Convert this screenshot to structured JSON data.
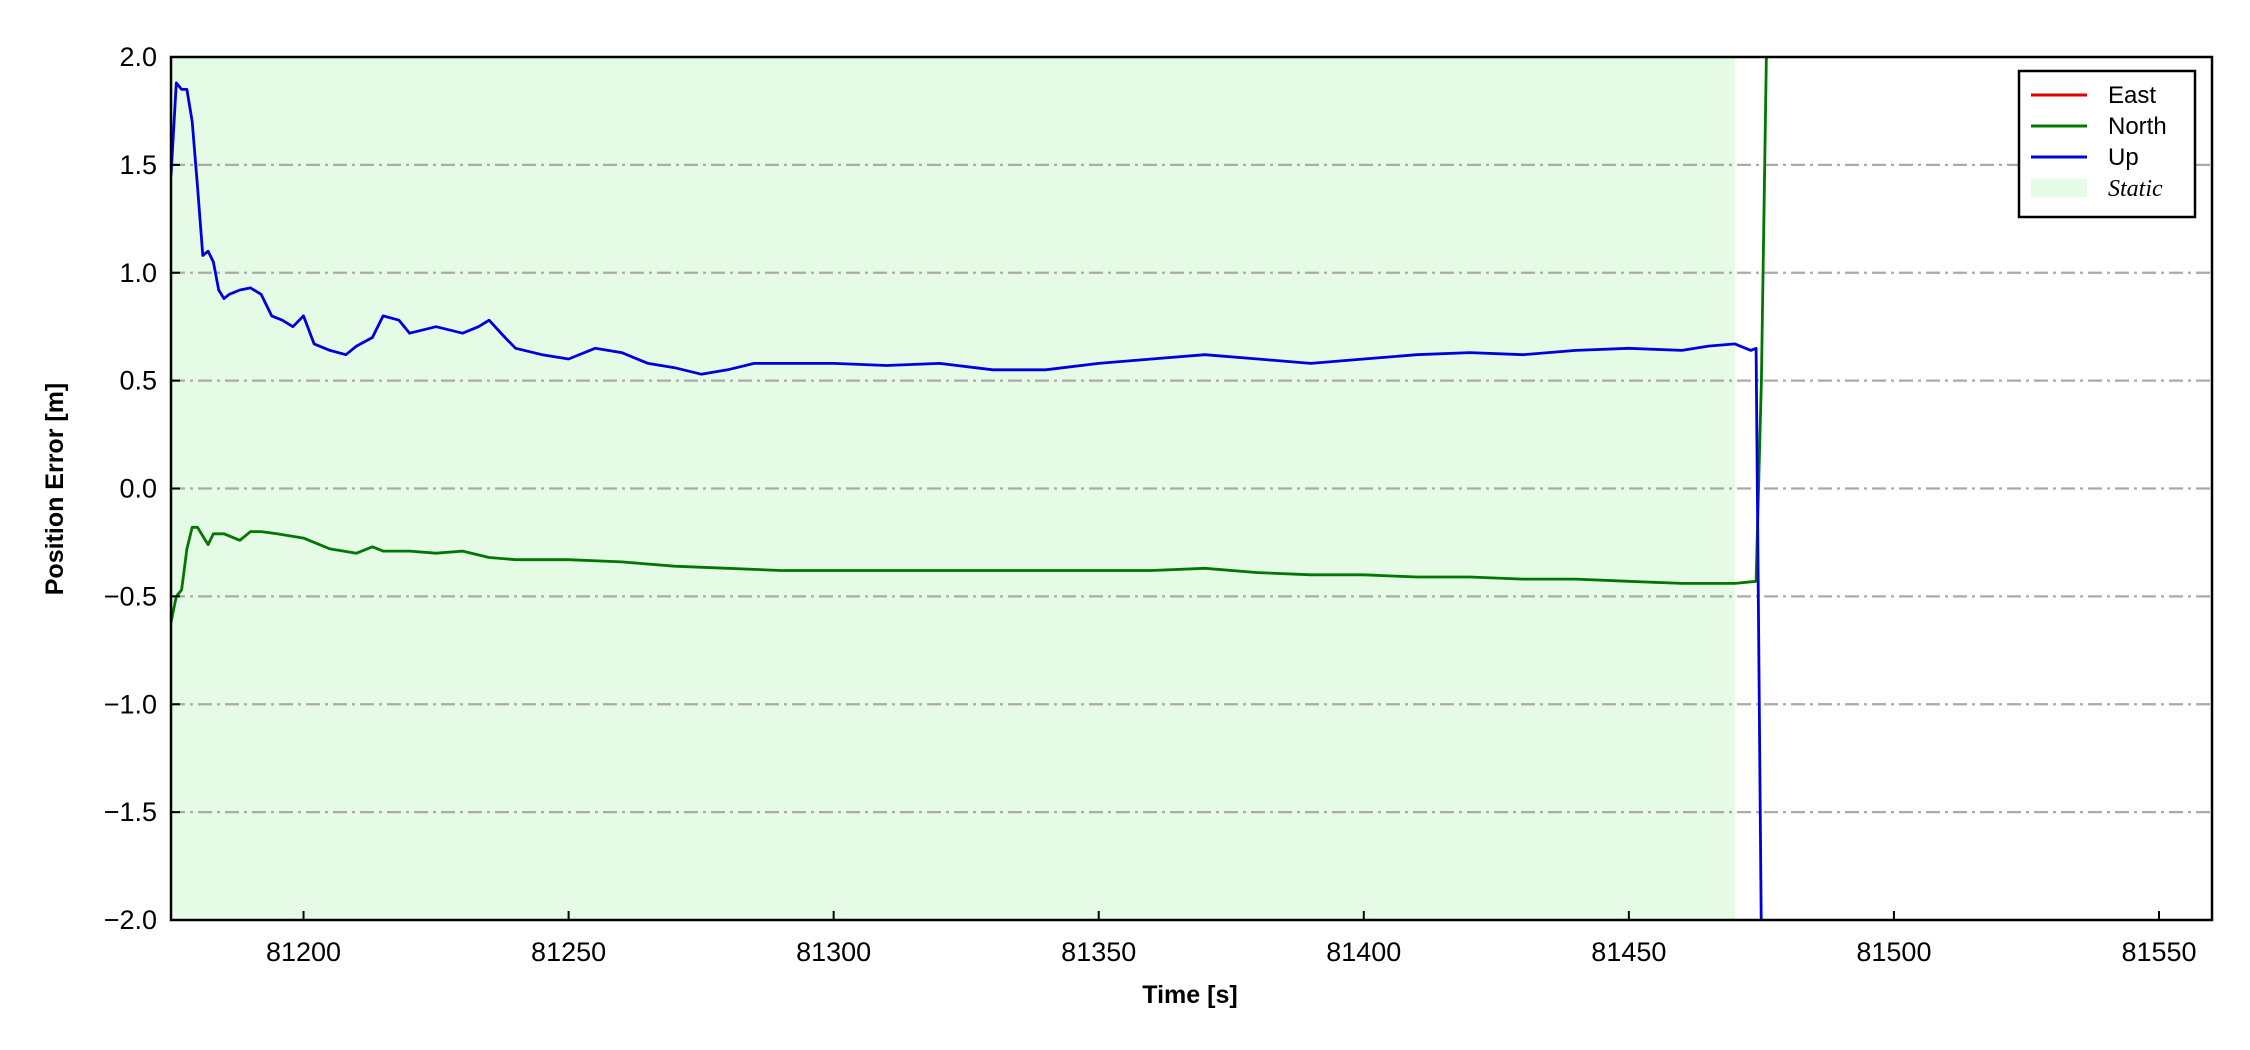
{
  "chart_data": {
    "type": "line",
    "xlabel": "Time [s]",
    "ylabel": "Position Error [m]",
    "xlim": [
      81175,
      81560
    ],
    "ylim": [
      -2.0,
      2.0
    ],
    "xticks": [
      81200,
      81250,
      81300,
      81350,
      81400,
      81450,
      81500,
      81550
    ],
    "xtick_labels": [
      "81200",
      "81250",
      "81300",
      "81350",
      "81400",
      "81450",
      "81500",
      "81550"
    ],
    "yticks": [
      -2.0,
      -1.5,
      -1.0,
      -0.5,
      0.0,
      0.5,
      1.0,
      1.5,
      2.0
    ],
    "ytick_labels": [
      "−2.0",
      "−1.5",
      "−1.0",
      "−0.5",
      "0.0",
      "0.5",
      "1.0",
      "1.5",
      "2.0"
    ],
    "grid": "horizontal dash-dot",
    "legend_position": "top-right",
    "shaded_regions": [
      {
        "name": "Static",
        "x_start": 81175,
        "x_end": 81470,
        "color": "#e6fbe6"
      }
    ],
    "series": [
      {
        "name": "East",
        "color": "#dd0000",
        "x": [],
        "y": []
      },
      {
        "name": "North",
        "color": "#007700",
        "x": [
          81175,
          81176,
          81177,
          81178,
          81179,
          81180,
          81181,
          81182,
          81183,
          81185,
          81188,
          81190,
          81192,
          81195,
          81200,
          81205,
          81210,
          81213,
          81215,
          81220,
          81225,
          81230,
          81235,
          81240,
          81250,
          81260,
          81270,
          81280,
          81290,
          81300,
          81310,
          81320,
          81330,
          81340,
          81350,
          81360,
          81370,
          81380,
          81390,
          81400,
          81410,
          81420,
          81430,
          81440,
          81450,
          81460,
          81470,
          81474,
          81475,
          81476
        ],
        "y": [
          -0.62,
          -0.5,
          -0.47,
          -0.28,
          -0.18,
          -0.18,
          -0.22,
          -0.26,
          -0.21,
          -0.21,
          -0.24,
          -0.2,
          -0.2,
          -0.21,
          -0.23,
          -0.28,
          -0.3,
          -0.27,
          -0.29,
          -0.29,
          -0.3,
          -0.29,
          -0.32,
          -0.33,
          -0.33,
          -0.34,
          -0.36,
          -0.37,
          -0.38,
          -0.38,
          -0.38,
          -0.38,
          -0.38,
          -0.38,
          -0.38,
          -0.38,
          -0.37,
          -0.39,
          -0.4,
          -0.4,
          -0.41,
          -0.41,
          -0.42,
          -0.42,
          -0.43,
          -0.44,
          -0.44,
          -0.43,
          0.5,
          2.1
        ]
      },
      {
        "name": "Up",
        "color": "#0000dd",
        "x": [
          81175,
          81176,
          81177,
          81178,
          81179,
          81180,
          81181,
          81182,
          81183,
          81184,
          81185,
          81186,
          81188,
          81190,
          81192,
          81194,
          81196,
          81198,
          81200,
          81202,
          81205,
          81208,
          81210,
          81213,
          81215,
          81218,
          81220,
          81225,
          81230,
          81233,
          81235,
          81238,
          81240,
          81245,
          81250,
          81255,
          81260,
          81265,
          81270,
          81275,
          81280,
          81285,
          81290,
          81300,
          81310,
          81320,
          81330,
          81340,
          81350,
          81360,
          81370,
          81380,
          81390,
          81400,
          81410,
          81420,
          81430,
          81440,
          81450,
          81460,
          81465,
          81470,
          81473,
          81474,
          81475
        ],
        "y": [
          1.45,
          1.88,
          1.85,
          1.85,
          1.7,
          1.4,
          1.08,
          1.1,
          1.05,
          0.92,
          0.88,
          0.9,
          0.92,
          0.93,
          0.9,
          0.8,
          0.78,
          0.75,
          0.8,
          0.67,
          0.64,
          0.62,
          0.66,
          0.7,
          0.8,
          0.78,
          0.72,
          0.75,
          0.72,
          0.75,
          0.78,
          0.7,
          0.65,
          0.62,
          0.6,
          0.65,
          0.63,
          0.58,
          0.56,
          0.53,
          0.55,
          0.58,
          0.58,
          0.58,
          0.57,
          0.58,
          0.55,
          0.55,
          0.58,
          0.6,
          0.62,
          0.6,
          0.58,
          0.6,
          0.62,
          0.63,
          0.62,
          0.64,
          0.65,
          0.64,
          0.66,
          0.67,
          0.64,
          0.65,
          -2.1
        ]
      }
    ]
  }
}
